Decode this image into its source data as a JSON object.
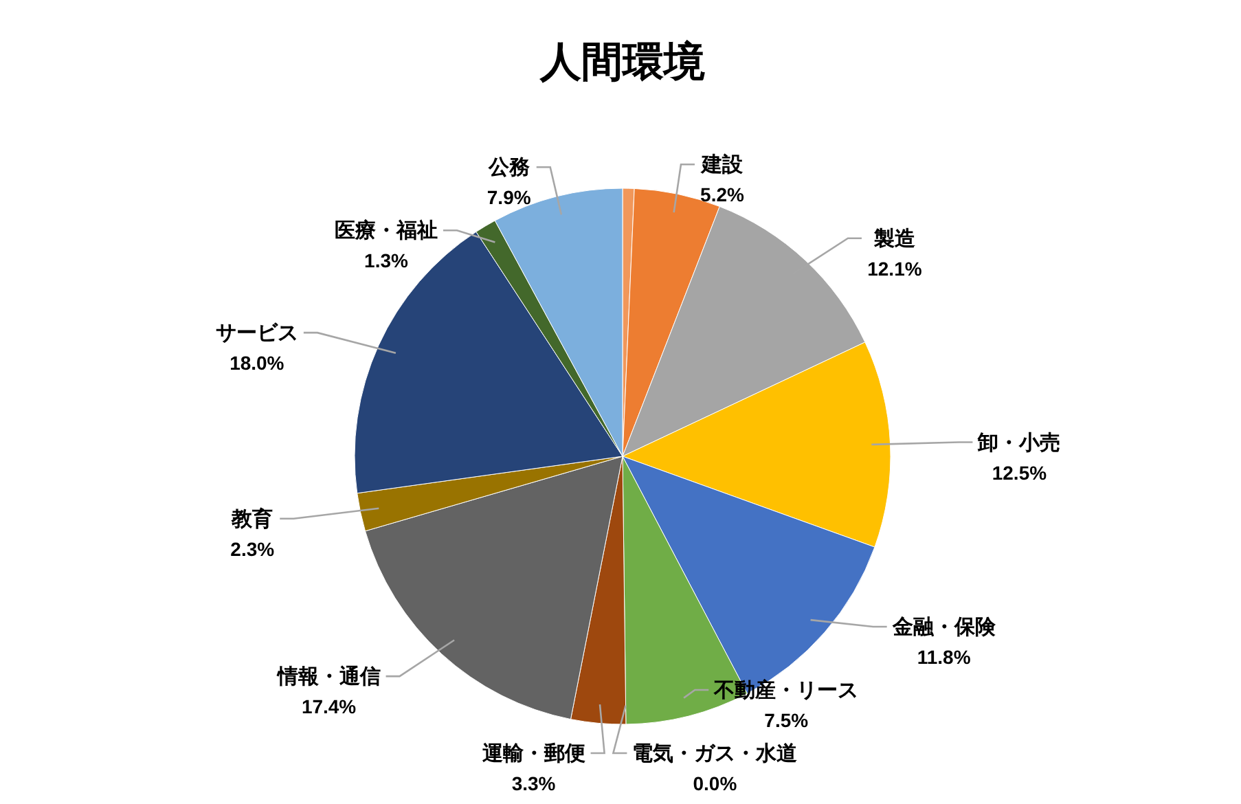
{
  "chart_data": {
    "type": "pie",
    "title": "人間環境",
    "categories": [
      null,
      "建設",
      "製造",
      "卸・小売",
      "金融・保険",
      "不動産・リース",
      "電気・ガス・水道",
      "運輸・郵便",
      "情報・通信",
      "教育",
      "サービス",
      "医療・福祉",
      "公務"
    ],
    "values": [
      0.7,
      5.2,
      12.1,
      12.5,
      11.8,
      7.5,
      0.0,
      3.3,
      17.4,
      2.3,
      18.0,
      1.3,
      7.9
    ],
    "value_labels": [
      null,
      "5.2%",
      "12.1%",
      "12.5%",
      "11.8%",
      "7.5%",
      "0.0%",
      "3.3%",
      "17.4%",
      "2.3%",
      "18.0%",
      "1.3%",
      "7.9%"
    ],
    "colors": [
      "#f1975a",
      "#ed7d31",
      "#a5a5a5",
      "#ffc000",
      "#4472c4",
      "#70ad47",
      "#255e91",
      "#9e480e",
      "#636363",
      "#997300",
      "#264478",
      "#43682b",
      "#7cafdd"
    ],
    "data_labels": false
  }
}
